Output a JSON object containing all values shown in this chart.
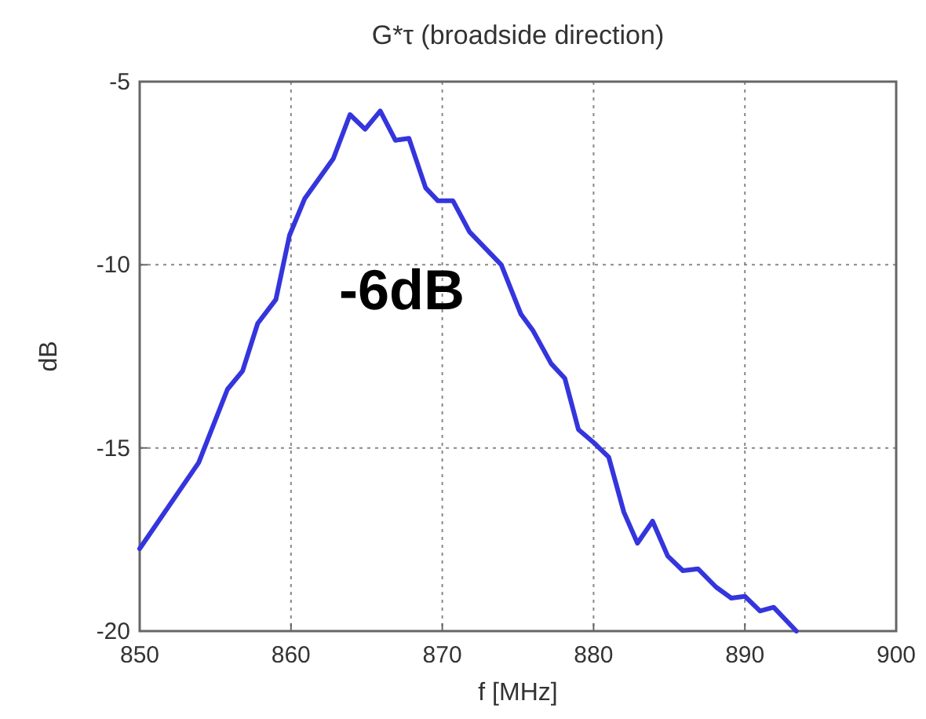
{
  "chart_data": {
    "type": "line",
    "title": "G*τ  (broadside direction)",
    "xlabel": "f [MHz]",
    "ylabel": "dB",
    "annotations": [
      "-6dB"
    ],
    "xlim": [
      850,
      900
    ],
    "xticks": [
      850,
      860,
      870,
      880,
      890,
      900
    ],
    "ylim": [
      -20,
      -5
    ],
    "yticks": [
      -20,
      -15,
      -10,
      -5
    ],
    "grid": true,
    "line_style": "solid",
    "series": [
      {
        "color": "#3535dd",
        "x": [
          850,
          853.9,
          855.8,
          856.8,
          857.8,
          859,
          859.9,
          860.9,
          862.8,
          863.9,
          864.9,
          865.9,
          866.9,
          867.8,
          868.9,
          869.7,
          870.7,
          871.8,
          873.9,
          875.2,
          876,
          877.2,
          878.1,
          879,
          880,
          881,
          882,
          882.9,
          883.9,
          884.9,
          885.9,
          886.9,
          888.1,
          889.1,
          890,
          891,
          891.9,
          893.4
        ],
        "values": [
          -17.75,
          -15.4,
          -13.4,
          -12.9,
          -11.6,
          -10.95,
          -9.2,
          -8.2,
          -7.1,
          -5.9,
          -6.3,
          -5.8,
          -6.6,
          -6.55,
          -7.9,
          -8.25,
          -8.25,
          -9.1,
          -10,
          -11.35,
          -11.8,
          -12.7,
          -13.1,
          -14.5,
          -14.85,
          -15.25,
          -16.75,
          -17.6,
          -17,
          -17.95,
          -18.35,
          -18.3,
          -18.8,
          -19.1,
          -19.05,
          -19.45,
          -19.35,
          -20
        ]
      }
    ]
  }
}
